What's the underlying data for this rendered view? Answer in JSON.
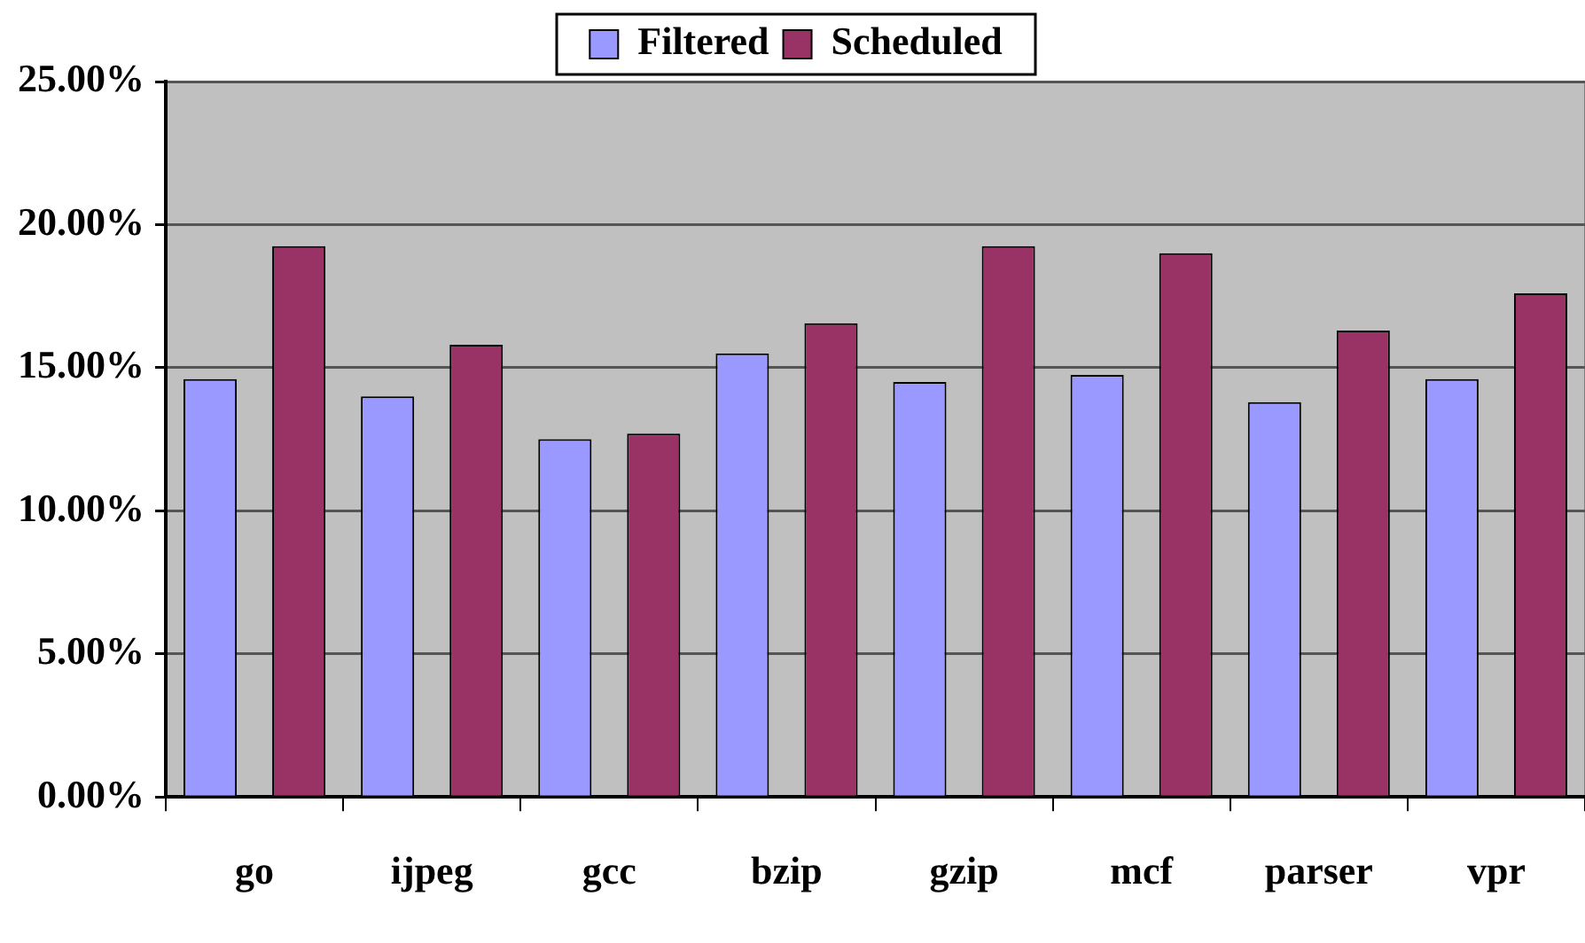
{
  "chart_data": {
    "type": "bar",
    "categories": [
      "go",
      "ijpeg",
      "gcc",
      "bzip",
      "gzip",
      "mcf",
      "parser",
      "vpr"
    ],
    "series": [
      {
        "name": "Filtered",
        "color": "#9999ff",
        "values": [
          14.6,
          14.0,
          12.5,
          15.5,
          14.5,
          14.75,
          13.8,
          14.6
        ]
      },
      {
        "name": "Scheduled",
        "color": "#993366",
        "values": [
          19.25,
          15.8,
          12.7,
          16.55,
          19.25,
          19.0,
          16.3,
          17.6
        ]
      }
    ],
    "ylim": [
      0,
      25
    ],
    "yticks": [
      {
        "value": 0,
        "label": "0.00%"
      },
      {
        "value": 5,
        "label": "5.00%"
      },
      {
        "value": 10,
        "label": "10.00%"
      },
      {
        "value": 15,
        "label": "15.00%"
      },
      {
        "value": 20,
        "label": "20.00%"
      },
      {
        "value": 25,
        "label": "25.00%"
      }
    ],
    "grid": "y",
    "legend": "top"
  }
}
